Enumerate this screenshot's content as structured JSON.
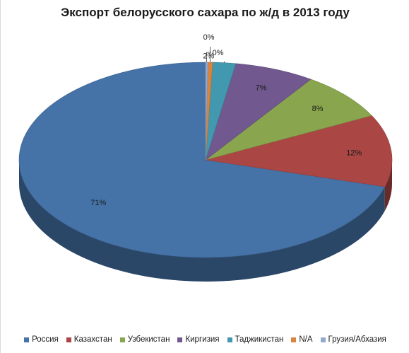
{
  "chart_data": {
    "type": "pie",
    "title": "Экспорт белорусского сахара по ж/д в 2013 году",
    "categories": [
      "Россия",
      "Казахстан",
      "Узбекистан",
      "Киргизия",
      "Таджикистан",
      "N/A",
      "Грузия/Абхазия"
    ],
    "values": [
      71,
      12,
      8,
      7,
      2,
      0.4,
      0.2
    ],
    "labels": [
      "71%",
      "12%",
      "8%",
      "7%",
      "2%",
      "0%",
      "0%"
    ],
    "colors": [
      "#4572A7",
      "#AA4643",
      "#89A54E",
      "#71588F",
      "#4198AF",
      "#DB843D",
      "#93A9CF"
    ],
    "legend_position": "bottom",
    "three_d": true
  }
}
